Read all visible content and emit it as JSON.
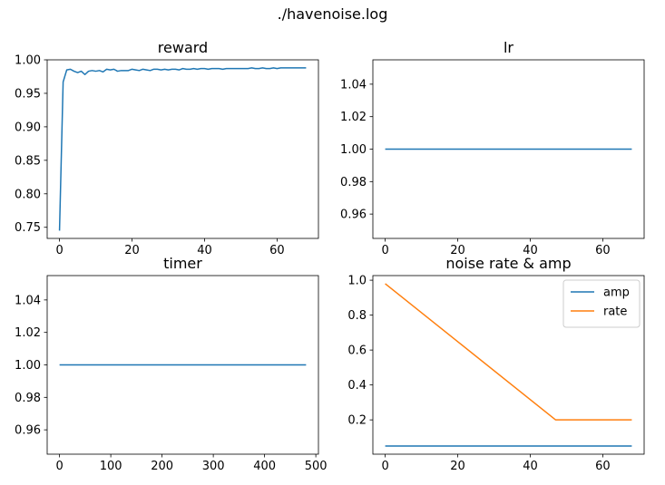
{
  "figure": {
    "suptitle": "./havenoise.log"
  },
  "chart_data": [
    {
      "type": "line",
      "title": "reward",
      "xlabel": "",
      "ylabel": "",
      "xlim": [
        -3.4,
        71.4
      ],
      "ylim": [
        0.7334,
        1.0
      ],
      "xticks": [
        0,
        20,
        40,
        60
      ],
      "yticks": [
        0.75,
        0.8,
        0.85,
        0.9,
        0.95,
        1.0
      ],
      "ytick_format": 2,
      "grid": false,
      "series": [
        {
          "color": "#1f77b4",
          "x": [
            0,
            1,
            2,
            3,
            4,
            5,
            6,
            7,
            8,
            9,
            10,
            11,
            12,
            13,
            14,
            15,
            16,
            17,
            18,
            19,
            20,
            21,
            22,
            23,
            24,
            25,
            26,
            27,
            28,
            29,
            30,
            31,
            32,
            33,
            34,
            35,
            36,
            37,
            38,
            39,
            40,
            41,
            42,
            43,
            44,
            45,
            46,
            47,
            48,
            49,
            50,
            51,
            52,
            53,
            54,
            55,
            56,
            57,
            58,
            59,
            60,
            61,
            62,
            63,
            64,
            65,
            66,
            67,
            68
          ],
          "values": [
            0.745,
            0.967,
            0.985,
            0.986,
            0.983,
            0.981,
            0.983,
            0.978,
            0.983,
            0.984,
            0.983,
            0.984,
            0.982,
            0.986,
            0.985,
            0.986,
            0.983,
            0.984,
            0.984,
            0.984,
            0.986,
            0.985,
            0.984,
            0.986,
            0.985,
            0.984,
            0.986,
            0.986,
            0.985,
            0.986,
            0.985,
            0.986,
            0.986,
            0.985,
            0.987,
            0.986,
            0.986,
            0.987,
            0.986,
            0.987,
            0.987,
            0.986,
            0.987,
            0.987,
            0.987,
            0.986,
            0.987,
            0.987,
            0.987,
            0.987,
            0.987,
            0.987,
            0.987,
            0.988,
            0.987,
            0.987,
            0.988,
            0.987,
            0.987,
            0.988,
            0.987,
            0.988,
            0.988,
            0.988,
            0.988,
            0.988,
            0.988,
            0.988,
            0.988
          ]
        }
      ]
    },
    {
      "type": "line",
      "title": "lr",
      "xlabel": "",
      "ylabel": "",
      "xlim": [
        -3.4,
        71.4
      ],
      "ylim": [
        0.945,
        1.055
      ],
      "xticks": [
        0,
        20,
        40,
        60
      ],
      "yticks": [
        0.96,
        0.98,
        1.0,
        1.02,
        1.04
      ],
      "ytick_format": 2,
      "grid": false,
      "series": [
        {
          "color": "#1f77b4",
          "x": [
            0,
            68
          ],
          "values": [
            1.0,
            1.0
          ]
        }
      ]
    },
    {
      "type": "line",
      "title": "timer",
      "xlabel": "",
      "ylabel": "",
      "xlim": [
        -24.1,
        505.1
      ],
      "ylim": [
        0.945,
        1.055
      ],
      "xticks": [
        0,
        100,
        200,
        300,
        400,
        500
      ],
      "yticks": [
        0.96,
        0.98,
        1.0,
        1.02,
        1.04
      ],
      "ytick_format": 2,
      "grid": false,
      "series": [
        {
          "color": "#1f77b4",
          "x": [
            0,
            481
          ],
          "values": [
            1.0,
            1.0
          ]
        }
      ]
    },
    {
      "type": "line",
      "title": "noise rate & amp",
      "xlabel": "",
      "ylabel": "",
      "xlim": [
        -3.4,
        71.4
      ],
      "ylim": [
        0.0035,
        1.0265
      ],
      "xticks": [
        0,
        20,
        40,
        60
      ],
      "yticks": [
        0.2,
        0.4,
        0.6,
        0.8,
        1.0
      ],
      "ytick_format": 1,
      "grid": false,
      "legend": "top-right",
      "series": [
        {
          "name": "amp",
          "color": "#1f77b4",
          "x": [
            0,
            68
          ],
          "values": [
            0.05,
            0.05
          ]
        },
        {
          "name": "rate",
          "color": "#ff7f0e",
          "x": [
            0,
            47,
            68
          ],
          "values": [
            0.98,
            0.2,
            0.2
          ]
        }
      ]
    }
  ]
}
